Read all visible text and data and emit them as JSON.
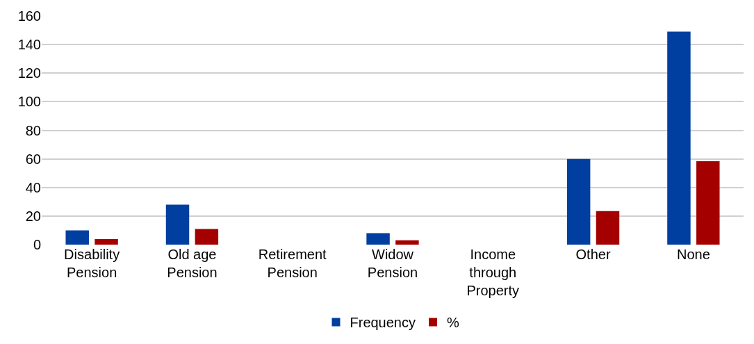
{
  "chart_data": {
    "type": "bar",
    "categories": [
      "Disability\nPension",
      "Old age\nPension",
      "Retirement\nPension",
      "Widow\nPension",
      "Income\nthrough\nProperty",
      "Other",
      "None"
    ],
    "series": [
      {
        "name": "Frequency",
        "color": "#003f9f",
        "values": [
          10,
          28,
          0,
          8,
          0,
          60,
          149
        ]
      },
      {
        "name": "%",
        "color": "#a50000",
        "values": [
          3.9,
          11,
          0,
          3.1,
          0,
          23.5,
          58.4
        ]
      }
    ],
    "ylim": [
      0,
      160
    ],
    "yticks": [
      0,
      20,
      40,
      60,
      80,
      100,
      120,
      140,
      160
    ],
    "grid": "y",
    "legend": "bottom"
  }
}
